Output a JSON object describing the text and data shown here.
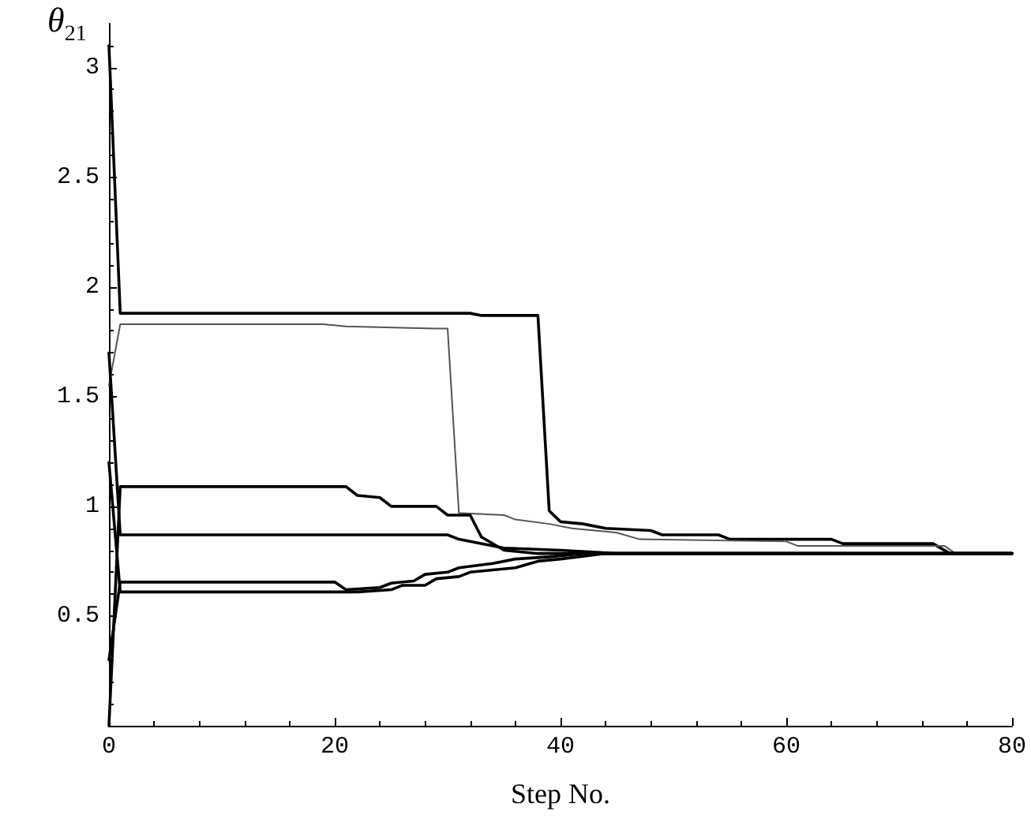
{
  "chart_data": {
    "type": "line",
    "xlabel": "Step No.",
    "ylabel": "θ$_{21}$",
    "xlim": [
      0,
      80
    ],
    "xticks": [
      0,
      20,
      40,
      60,
      80
    ],
    "ylim": [
      0,
      3.2
    ],
    "yticks": [
      0.5,
      1,
      1.5,
      2,
      2.5,
      3
    ],
    "grid": false,
    "marker": "none",
    "line_style": "solid",
    "series": [
      {
        "color": "#000000",
        "x": [
          0,
          1,
          32,
          33,
          38,
          39,
          40,
          42,
          44,
          48,
          49,
          54,
          55,
          64,
          65,
          73,
          74.5,
          80
        ],
        "values": [
          3.1,
          1.88,
          1.88,
          1.87,
          1.87,
          0.98,
          0.93,
          0.92,
          0.9,
          0.89,
          0.87,
          0.87,
          0.85,
          0.85,
          0.83,
          0.83,
          0.785,
          0.785
        ]
      },
      {
        "color": "#555555",
        "x": [
          0,
          1,
          19,
          21,
          29,
          30,
          31,
          35,
          36,
          39,
          41,
          45,
          47,
          60,
          61,
          74,
          75,
          80
        ],
        "values": [
          1.55,
          1.83,
          1.83,
          1.82,
          1.81,
          1.81,
          0.97,
          0.96,
          0.94,
          0.92,
          0.9,
          0.88,
          0.85,
          0.84,
          0.82,
          0.82,
          0.785,
          0.785
        ]
      },
      {
        "color": "#000000",
        "x": [
          0,
          1,
          21,
          22,
          24,
          25,
          29,
          30,
          32,
          33,
          35,
          38,
          80
        ],
        "values": [
          0.0,
          1.09,
          1.09,
          1.05,
          1.04,
          1.0,
          1.0,
          0.96,
          0.96,
          0.86,
          0.8,
          0.785,
          0.785
        ]
      },
      {
        "color": "#000000",
        "x": [
          0,
          1,
          30,
          31,
          35,
          40,
          45,
          80
        ],
        "values": [
          1.7,
          0.87,
          0.87,
          0.85,
          0.81,
          0.8,
          0.785,
          0.785
        ]
      },
      {
        "color": "#000000",
        "x": [
          0,
          1,
          20,
          21,
          24,
          25,
          27,
          28,
          30,
          31,
          34,
          36,
          39,
          42,
          80
        ],
        "values": [
          0.3,
          0.655,
          0.655,
          0.62,
          0.63,
          0.65,
          0.66,
          0.69,
          0.7,
          0.72,
          0.74,
          0.76,
          0.77,
          0.785,
          0.785
        ]
      },
      {
        "color": "#000000",
        "x": [
          0,
          1,
          20,
          22,
          25,
          26,
          28,
          29,
          31,
          32,
          36,
          38,
          40,
          44,
          80
        ],
        "values": [
          1.2,
          0.61,
          0.61,
          0.61,
          0.62,
          0.64,
          0.64,
          0.67,
          0.68,
          0.7,
          0.72,
          0.75,
          0.76,
          0.785,
          0.785
        ]
      }
    ]
  }
}
